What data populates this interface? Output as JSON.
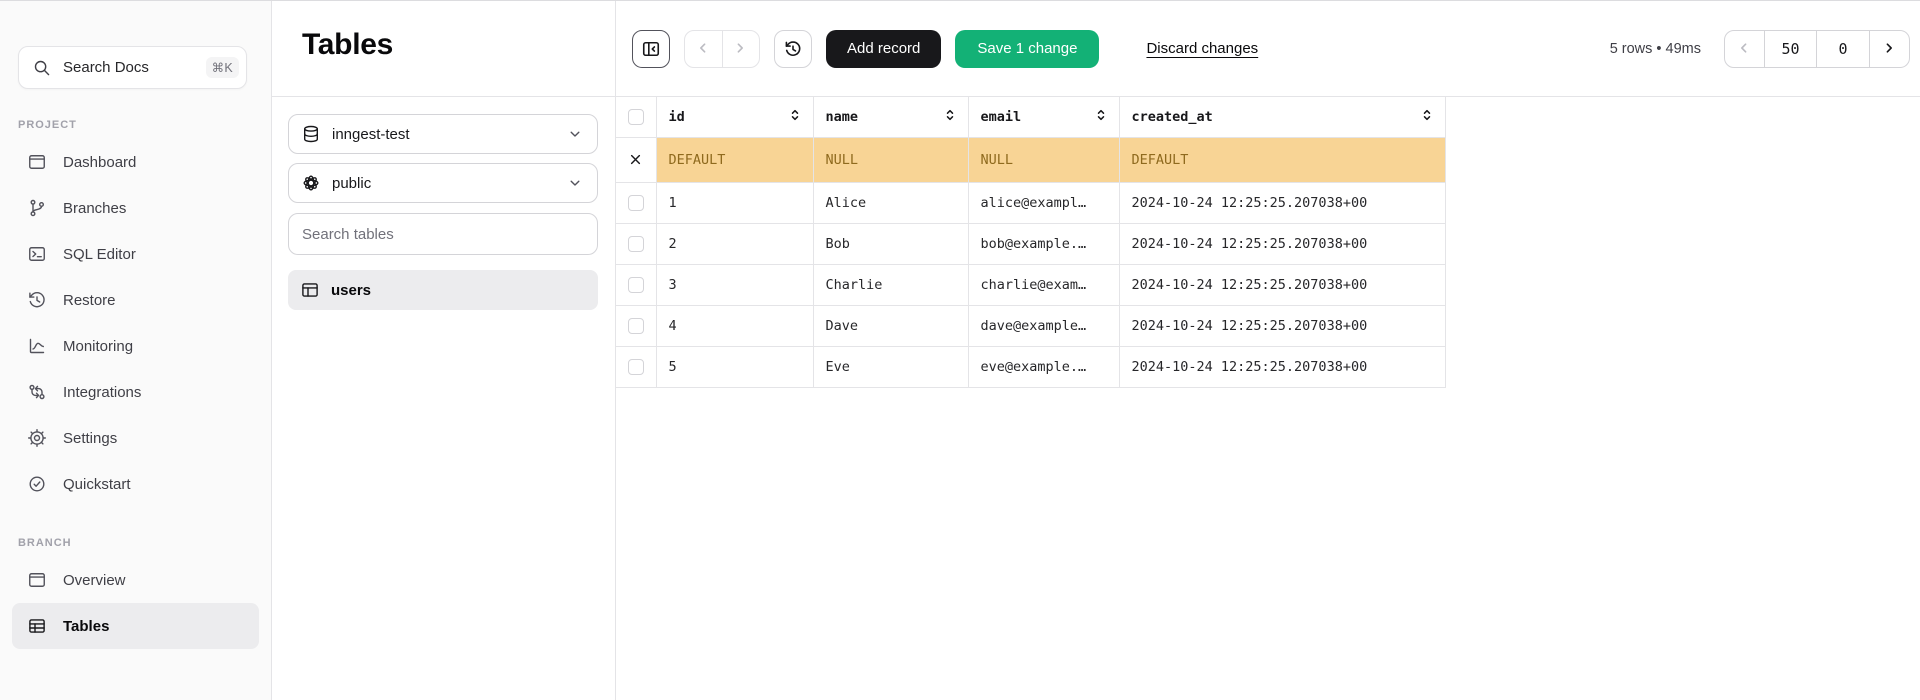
{
  "colors": {
    "accent_green": "#13B176",
    "button_dark": "#18181B",
    "pending_bg": "#F8D495",
    "pending_fg": "#8F6A1E",
    "border": "#E4E4E7",
    "sidebar_bg": "#FAFAFA",
    "active_item_bg": "#ECECEE"
  },
  "sidebar": {
    "search": {
      "label": "Search Docs",
      "shortcut": "⌘K"
    },
    "project_label": "PROJECT",
    "project_items": [
      {
        "label": "Dashboard"
      },
      {
        "label": "Branches"
      },
      {
        "label": "SQL Editor"
      },
      {
        "label": "Restore"
      },
      {
        "label": "Monitoring"
      },
      {
        "label": "Integrations"
      },
      {
        "label": "Settings"
      },
      {
        "label": "Quickstart"
      }
    ],
    "branch_label": "BRANCH",
    "branch_items": [
      {
        "label": "Overview"
      },
      {
        "label": "Tables",
        "active": true
      }
    ]
  },
  "panel": {
    "title": "Tables",
    "database": "inngest-test",
    "schema": "public",
    "search_placeholder": "Search tables",
    "tables": [
      "users"
    ]
  },
  "toolbar": {
    "add_record_label": "Add record",
    "save_label": "Save 1 change",
    "discard_label": "Discard changes",
    "stats": "5 rows • 49ms",
    "page_size": "50",
    "page_offset": "0"
  },
  "grid": {
    "columns": [
      "id",
      "name",
      "email",
      "created_at"
    ],
    "pending_row": [
      "DEFAULT",
      "NULL",
      "NULL",
      "DEFAULT"
    ],
    "rows": [
      [
        "1",
        "Alice",
        "alice@exampl…",
        "2024-10-24 12:25:25.207038+00"
      ],
      [
        "2",
        "Bob",
        "bob@example.…",
        "2024-10-24 12:25:25.207038+00"
      ],
      [
        "3",
        "Charlie",
        "charlie@exam…",
        "2024-10-24 12:25:25.207038+00"
      ],
      [
        "4",
        "Dave",
        "dave@example…",
        "2024-10-24 12:25:25.207038+00"
      ],
      [
        "5",
        "Eve",
        "eve@example.…",
        "2024-10-24 12:25:25.207038+00"
      ]
    ]
  }
}
